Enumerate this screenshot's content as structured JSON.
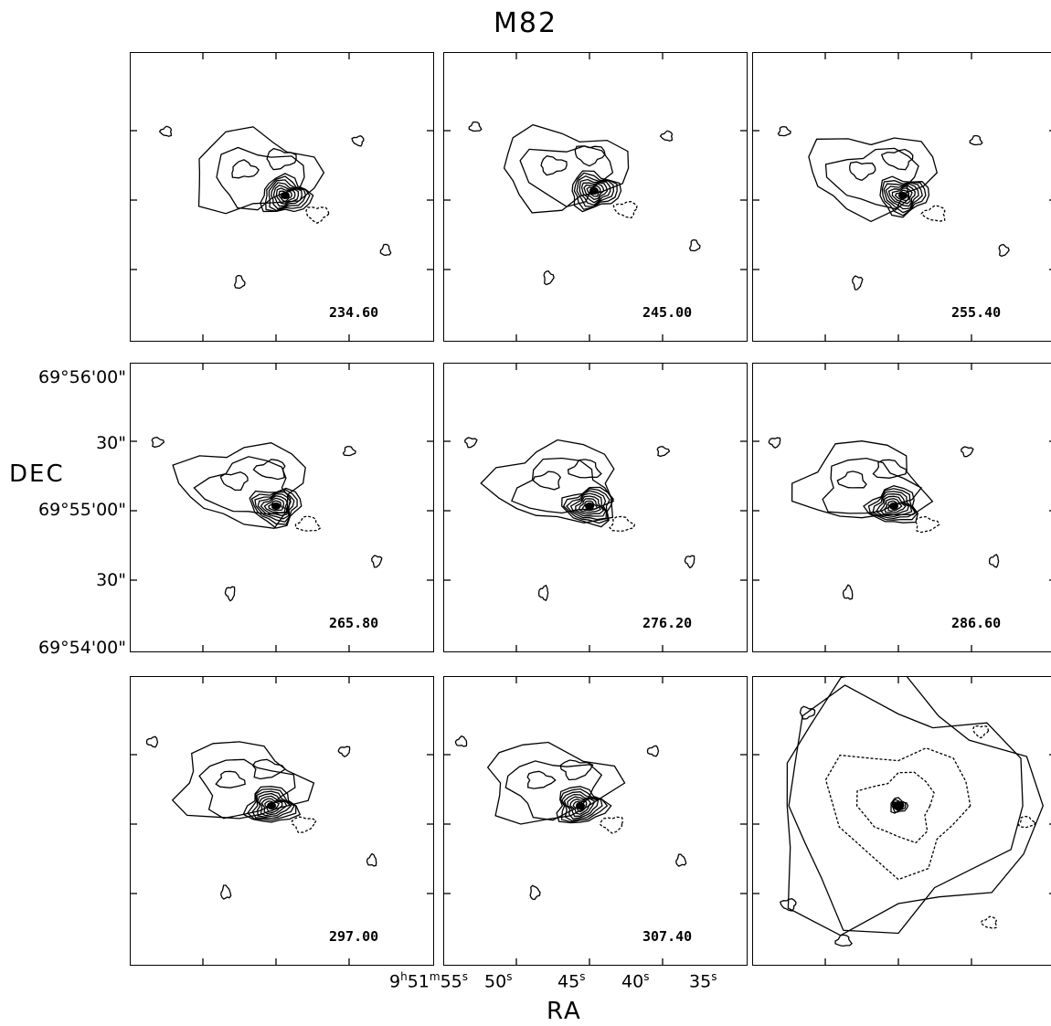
{
  "chart_data": {
    "type": "contour",
    "title": "M82",
    "xlabel": "RA",
    "ylabel": "DEC",
    "x_ticks": [
      {
        "h": "9",
        "m": "51",
        "s": "55",
        "label": "55"
      },
      {
        "s": "50",
        "label": "50"
      },
      {
        "s": "45",
        "label": "45"
      },
      {
        "s": "40",
        "label": "40"
      },
      {
        "s": "35",
        "label": "35"
      }
    ],
    "y_ticks": [
      "69°56'00\"",
      "30\"",
      "69°55'00\"",
      "30\"",
      "69°54'00\""
    ],
    "grid": false,
    "panels": [
      {
        "label": "234.60"
      },
      {
        "label": "245.00"
      },
      {
        "label": "255.40"
      },
      {
        "label": "265.80"
      },
      {
        "label": "276.20"
      },
      {
        "label": "286.60"
      },
      {
        "label": "297.00"
      },
      {
        "label": "307.40"
      },
      {
        "label": ""
      }
    ]
  }
}
